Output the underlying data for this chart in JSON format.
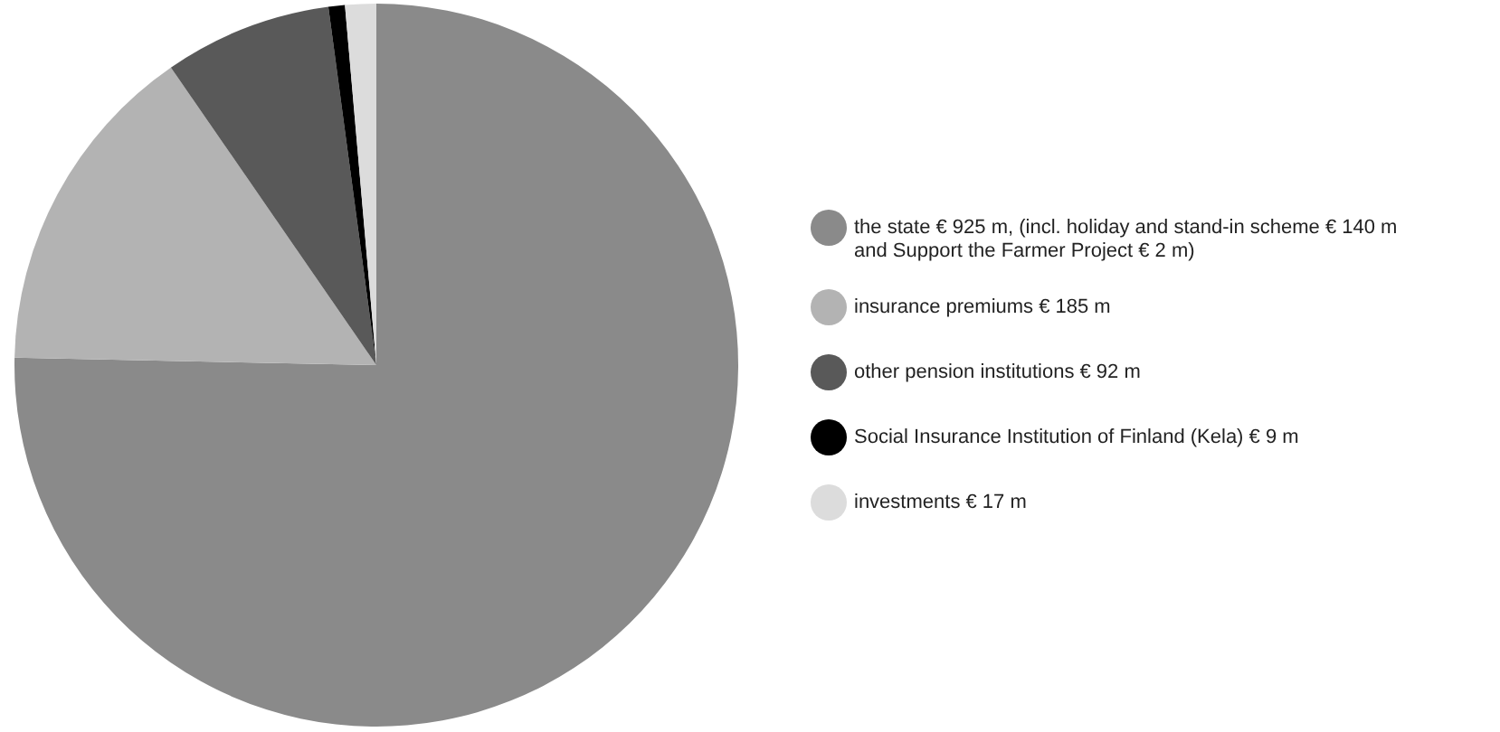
{
  "chart_data": {
    "type": "pie",
    "categories": [
      "the state € 925 m, (incl. holiday and stand-in scheme € 140 m and Support the Farmer Project € 2 m)",
      "insurance premiums € 185 m",
      "other pension institutions € 92 m",
      "Social Insurance Institution of Finland (Kela) € 9 m",
      "investments € 17 m"
    ],
    "values": [
      925,
      185,
      92,
      9,
      17
    ],
    "colors": [
      "#8a8a8a",
      "#b3b3b3",
      "#595959",
      "#000000",
      "#dcdcdc"
    ],
    "legend": "right"
  }
}
